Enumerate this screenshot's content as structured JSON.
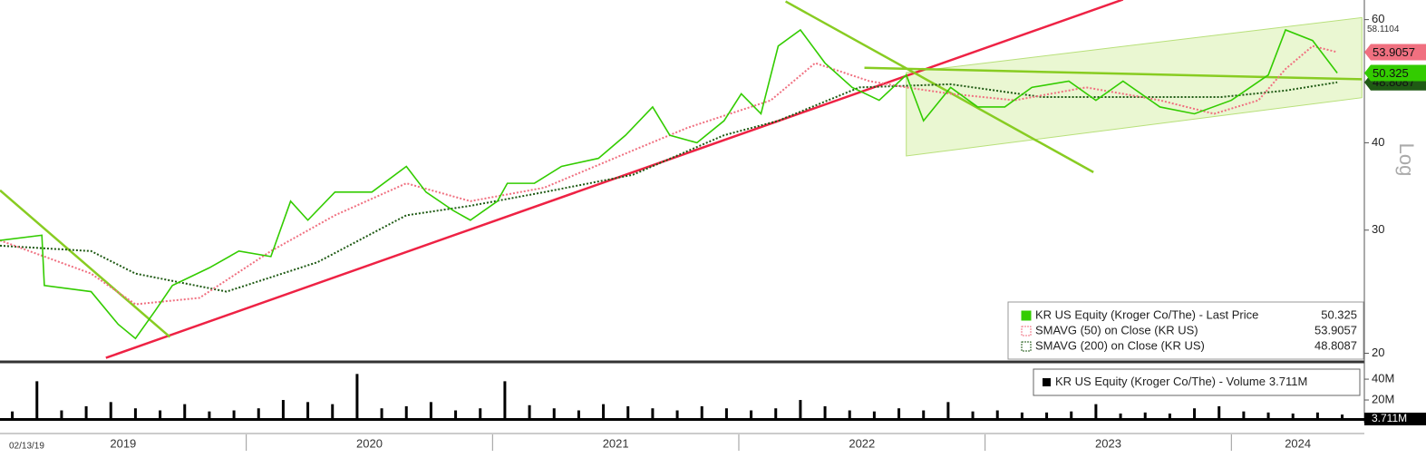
{
  "chart_data": {
    "type": "line",
    "start_date": "02/13/19",
    "axis_label": "Log",
    "log_scale": true,
    "xlim": [
      2019.0,
      2024.54
    ],
    "xticks": [
      2019,
      2020,
      2021,
      2022,
      2023,
      2024
    ],
    "ylim": [
      19.5,
      64
    ],
    "yticks": [
      20,
      30,
      40,
      60
    ],
    "high_label": 58.1104,
    "series": [
      {
        "name": "KR US Equity (Kroger Co/The) - Last Price",
        "color": "#33cc00",
        "last": 50.325,
        "style": "solid",
        "x": [
          2019.0,
          2019.17,
          2019.18,
          2019.37,
          2019.48,
          2019.55,
          2019.63,
          2019.7,
          2019.85,
          2019.97,
          2020.1,
          2020.18,
          2020.25,
          2020.36,
          2020.51,
          2020.65,
          2020.73,
          2020.84,
          2020.91,
          2021.02,
          2021.06,
          2021.17,
          2021.28,
          2021.43,
          2021.54,
          2021.65,
          2021.72,
          2021.83,
          2021.94,
          2022.01,
          2022.09,
          2022.16,
          2022.25,
          2022.35,
          2022.46,
          2022.57,
          2022.68,
          2022.75,
          2022.86,
          2022.97,
          2023.08,
          2023.19,
          2023.34,
          2023.45,
          2023.56,
          2023.71,
          2023.85,
          2024.0,
          2024.15,
          2024.22,
          2024.33,
          2024.43
        ],
        "values": [
          29,
          29.5,
          25,
          24.5,
          22,
          21,
          23,
          25,
          26.5,
          28,
          27.5,
          33,
          31,
          34,
          34,
          37,
          34,
          32,
          31,
          33,
          35,
          35,
          37,
          38,
          41,
          45,
          41,
          40,
          43,
          47,
          44,
          55,
          58,
          52,
          48,
          46,
          50,
          43,
          48,
          45,
          45,
          48,
          49,
          46,
          49,
          45,
          44,
          46,
          50,
          58,
          56,
          50.325
        ]
      },
      {
        "name": "SMAVG (50)  on Close (KR US)",
        "color": "#f07080",
        "last": 53.9057,
        "style": "dotted",
        "x": [
          2019.0,
          2019.37,
          2019.55,
          2019.81,
          2020.1,
          2020.36,
          2020.65,
          2020.91,
          2021.21,
          2021.57,
          2021.79,
          2022.13,
          2022.31,
          2022.53,
          2022.68,
          2022.86,
          2023.12,
          2023.41,
          2023.71,
          2023.93,
          2024.11,
          2024.22,
          2024.33,
          2024.43
        ],
        "values": [
          29,
          26,
          23.5,
          24,
          28,
          31.5,
          35,
          33,
          34.5,
          39,
          42,
          46,
          52,
          49,
          48,
          47,
          46,
          48,
          46,
          44,
          46,
          51,
          55,
          53.9057
        ]
      },
      {
        "name": "SMAVG (200)  on Close (KR US)",
        "color": "#1f5a14",
        "last": 48.8087,
        "style": "dotted",
        "x": [
          2019.0,
          2019.37,
          2019.55,
          2019.92,
          2020.29,
          2020.65,
          2020.91,
          2021.21,
          2021.57,
          2021.94,
          2022.16,
          2022.49,
          2022.86,
          2023.23,
          2023.6,
          2023.96,
          2024.22,
          2024.43
        ],
        "values": [
          28.5,
          28,
          26,
          24.5,
          27,
          31.5,
          32.5,
          34,
          36,
          41,
          43,
          48,
          48.5,
          46.5,
          46.5,
          46.5,
          47.5,
          48.8087
        ]
      }
    ],
    "trendlines": [
      {
        "color": "#ee2244",
        "x": [
          2019.43,
          2023.56
        ],
        "y": [
          19.7,
          64.1
        ]
      },
      {
        "color": "#88cc22",
        "x": [
          2019.0,
          2019.69
        ],
        "y": [
          34.2,
          21.1
        ]
      },
      {
        "color": "#88cc22",
        "x": [
          2022.19,
          2023.44
        ],
        "y": [
          63.7,
          36.3
        ]
      },
      {
        "color": "#88cc22",
        "x": [
          2022.51,
          2024.53
        ],
        "y": [
          51.2,
          49.3
        ]
      }
    ],
    "channel": {
      "color": "#eaf7d2",
      "x": [
        2022.68,
        2024.53
      ],
      "upper": [
        50.4,
        60.4
      ],
      "lower": [
        38.3,
        46.4
      ]
    },
    "volume": {
      "name": "KR US Equity (Kroger Co/The) - Volume",
      "last_label": "3.711M",
      "color": "#000000",
      "ylim": [
        0,
        54000000
      ],
      "yticks": [
        {
          "value": 20000000,
          "label": "20M"
        },
        {
          "value": 40000000,
          "label": "40M"
        }
      ],
      "x": [
        2019.05,
        2019.15,
        2019.25,
        2019.35,
        2019.45,
        2019.55,
        2019.65,
        2019.75,
        2019.85,
        2019.95,
        2020.05,
        2020.15,
        2020.25,
        2020.35,
        2020.45,
        2020.55,
        2020.65,
        2020.75,
        2020.85,
        2020.95,
        2021.05,
        2021.15,
        2021.25,
        2021.35,
        2021.45,
        2021.55,
        2021.65,
        2021.75,
        2021.85,
        2021.95,
        2022.05,
        2022.15,
        2022.25,
        2022.35,
        2022.45,
        2022.55,
        2022.65,
        2022.75,
        2022.85,
        2022.95,
        2023.05,
        2023.15,
        2023.25,
        2023.35,
        2023.45,
        2023.55,
        2023.65,
        2023.75,
        2023.85,
        2023.95,
        2024.05,
        2024.15,
        2024.25,
        2024.35,
        2024.45
      ],
      "values": [
        9000000,
        38000000,
        10000000,
        14000000,
        18000000,
        12000000,
        10000000,
        16000000,
        9000000,
        10000000,
        12000000,
        20000000,
        18000000,
        16000000,
        45000000,
        12000000,
        14000000,
        18000000,
        10000000,
        12000000,
        38000000,
        15000000,
        12000000,
        10000000,
        16000000,
        14000000,
        12000000,
        10000000,
        14000000,
        12000000,
        10000000,
        12000000,
        20000000,
        14000000,
        10000000,
        9000000,
        12000000,
        10000000,
        18000000,
        9000000,
        10000000,
        8000000,
        8000000,
        9000000,
        16000000,
        7000000,
        8000000,
        7000000,
        12000000,
        14000000,
        9000000,
        8000000,
        7000000,
        8000000,
        6000000
      ]
    }
  }
}
